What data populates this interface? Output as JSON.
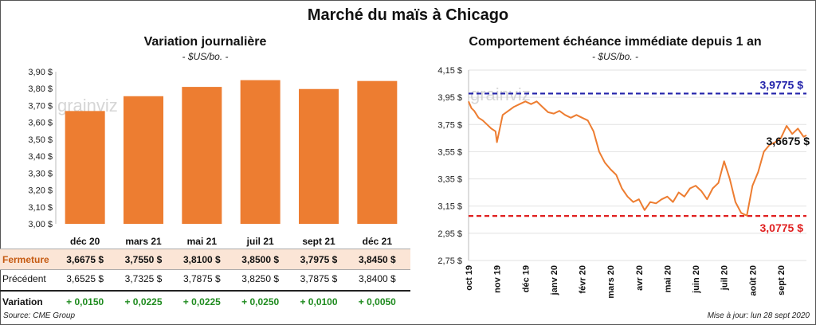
{
  "title": "Marché du maïs à Chicago",
  "colors": {
    "bar": "#ED7D31",
    "line": "#ED7D31",
    "upper": "#2222AA",
    "lower": "#E02020",
    "highlight_row": "#FBE5D6",
    "positive": "#1F8B1F"
  },
  "watermark": "grainviz",
  "chart_data": [
    {
      "type": "bar",
      "title": "Variation  journalière",
      "subtitle": "- $US/bo. -",
      "categories": [
        "déc 20",
        "mars 21",
        "mai 21",
        "juil 21",
        "sept 21",
        "déc 21"
      ],
      "values": [
        3.6675,
        3.755,
        3.81,
        3.85,
        3.7975,
        3.845
      ],
      "ylim": [
        3.0,
        3.9
      ],
      "yticks": [
        "3,90 $",
        "3,80 $",
        "3,70 $",
        "3,60 $",
        "3,50 $",
        "3,40 $",
        "3,30 $",
        "3,20 $",
        "3,10 $",
        "3,00 $"
      ],
      "ytick_values": [
        3.9,
        3.8,
        3.7,
        3.6,
        3.5,
        3.4,
        3.3,
        3.2,
        3.1,
        3.0
      ],
      "table": {
        "rows": [
          {
            "label": "Fermeture",
            "cells": [
              "3,6675  $",
              "3,7550  $",
              "3,8100  $",
              "3,8500  $",
              "3,7975  $",
              "3,8450  $"
            ]
          },
          {
            "label": "Précédent",
            "cells": [
              "3,6525  $",
              "3,7325  $",
              "3,7875  $",
              "3,8250  $",
              "3,7875  $",
              "3,8400  $"
            ]
          },
          {
            "label": "Variation",
            "cells": [
              "+ 0,0150",
              "+ 0,0225",
              "+ 0,0225",
              "+ 0,0250",
              "+ 0,0100",
              "+ 0,0050"
            ]
          }
        ]
      }
    },
    {
      "type": "line",
      "title": "Comportement  échéance immédiate depuis 1 an",
      "subtitle": "- $US/bo. -",
      "ylim": [
        2.75,
        4.15
      ],
      "yticks": [
        "4,15 $",
        "3,95 $",
        "3,75 $",
        "3,55 $",
        "3,35 $",
        "3,15 $",
        "2,95 $",
        "2,75 $"
      ],
      "ytick_values": [
        4.15,
        3.95,
        3.75,
        3.55,
        3.35,
        3.15,
        2.95,
        2.75
      ],
      "xticks": [
        "oct 19",
        "nov 19",
        "déc 19",
        "janv 20",
        "févr 20",
        "mars 20",
        "avr 20",
        "mai 20",
        "juin 20",
        "juil 20",
        "août 20",
        "sept 20"
      ],
      "xtick_months": [
        0,
        1,
        2,
        3,
        4,
        5,
        6,
        7,
        8,
        9,
        10,
        11
      ],
      "upper_line": {
        "value": 3.9775,
        "label": "3,9775 $"
      },
      "lower_line": {
        "value": 3.0775,
        "label": "3,0775 $"
      },
      "last_label": "3,6675 $",
      "x_month": [
        0,
        0.1,
        0.2,
        0.35,
        0.5,
        0.65,
        0.8,
        0.95,
        1.0,
        1.2,
        1.4,
        1.6,
        1.8,
        2.0,
        2.2,
        2.4,
        2.6,
        2.8,
        3.0,
        3.2,
        3.4,
        3.6,
        3.8,
        4.0,
        4.2,
        4.4,
        4.6,
        4.8,
        5.0,
        5.2,
        5.4,
        5.6,
        5.8,
        6.0,
        6.2,
        6.4,
        6.6,
        6.8,
        7.0,
        7.2,
        7.4,
        7.6,
        7.8,
        8.0,
        8.2,
        8.4,
        8.6,
        8.8,
        9.0,
        9.2,
        9.4,
        9.6,
        9.8,
        10.0,
        10.2,
        10.4,
        10.6,
        10.8,
        11.0,
        11.2,
        11.4,
        11.6,
        11.8,
        11.9
      ],
      "y": [
        3.92,
        3.87,
        3.85,
        3.8,
        3.78,
        3.75,
        3.72,
        3.7,
        3.62,
        3.82,
        3.85,
        3.88,
        3.9,
        3.92,
        3.9,
        3.92,
        3.88,
        3.84,
        3.83,
        3.85,
        3.82,
        3.8,
        3.82,
        3.8,
        3.78,
        3.7,
        3.55,
        3.47,
        3.42,
        3.38,
        3.28,
        3.22,
        3.18,
        3.2,
        3.12,
        3.18,
        3.17,
        3.2,
        3.22,
        3.18,
        3.25,
        3.22,
        3.28,
        3.3,
        3.26,
        3.2,
        3.28,
        3.32,
        3.48,
        3.35,
        3.18,
        3.1,
        3.08,
        3.3,
        3.4,
        3.55,
        3.6,
        3.62,
        3.65,
        3.74,
        3.68,
        3.72,
        3.66,
        3.67
      ]
    }
  ],
  "source": "Source: CME Group",
  "updated": "Mise à jour: lun 28 sept 2020"
}
